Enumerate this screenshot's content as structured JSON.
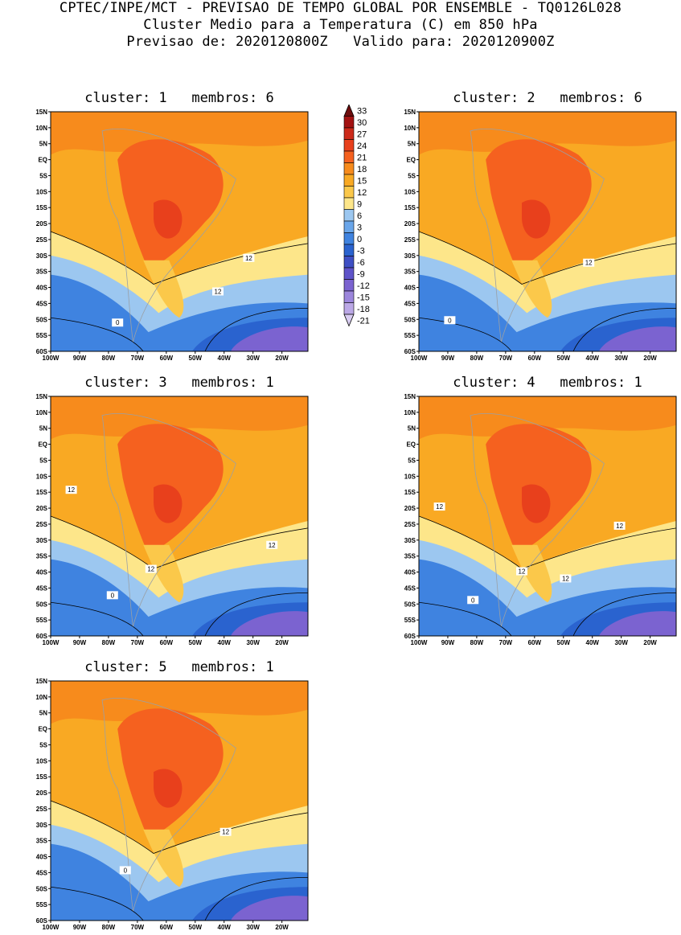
{
  "header": {
    "line1": "CPTEC/INPE/MCT - PREVISAO DE TEMPO GLOBAL POR ENSEMBLE - TQ0126L028",
    "line2": "Cluster Medio para a Temperatura (C) em 850 hPa",
    "line3": "Previsao de: 2020120800Z   Valido para: 2020120900Z"
  },
  "axes": {
    "lat_labels": [
      "15N",
      "10N",
      "5N",
      "EQ",
      "5S",
      "10S",
      "15S",
      "20S",
      "25S",
      "30S",
      "35S",
      "40S",
      "45S",
      "50S",
      "55S",
      "60S"
    ],
    "lon_labels": [
      "100W",
      "90W",
      "80W",
      "70W",
      "60W",
      "50W",
      "40W",
      "30W",
      "20W"
    ]
  },
  "colorbar": {
    "labels": [
      "33",
      "30",
      "27",
      "24",
      "21",
      "18",
      "15",
      "12",
      "9",
      "6",
      "3",
      "0",
      "-3",
      "-6",
      "-9",
      "-12",
      "-15",
      "-18",
      "-21"
    ],
    "colors": [
      "#6e0d0d",
      "#a31212",
      "#cc2a1a",
      "#e8401c",
      "#f5611f",
      "#f78b1c",
      "#f9a923",
      "#fbc84a",
      "#fde68a",
      "#9cc7f0",
      "#6aa6ea",
      "#3f83e0",
      "#2a63cf",
      "#3e4fc4",
      "#5e53c9",
      "#7b63d0",
      "#9c86dc",
      "#bba8e6",
      "#d9cdf2"
    ]
  },
  "panels": [
    {
      "title": "cluster: 1   membros: 6",
      "labels": [
        "12",
        "12",
        "0"
      ]
    },
    {
      "title": "cluster: 2   membros: 6",
      "labels": [
        "12",
        "0"
      ]
    },
    {
      "title": "cluster: 3   membros: 1",
      "labels": [
        "12",
        "12",
        "12",
        "0"
      ]
    },
    {
      "title": "cluster: 4   membros: 1",
      "labels": [
        "12",
        "12",
        "12",
        "12",
        "0"
      ]
    },
    {
      "title": "cluster: 5   membros: 1",
      "labels": [
        "12",
        "0"
      ]
    }
  ]
}
